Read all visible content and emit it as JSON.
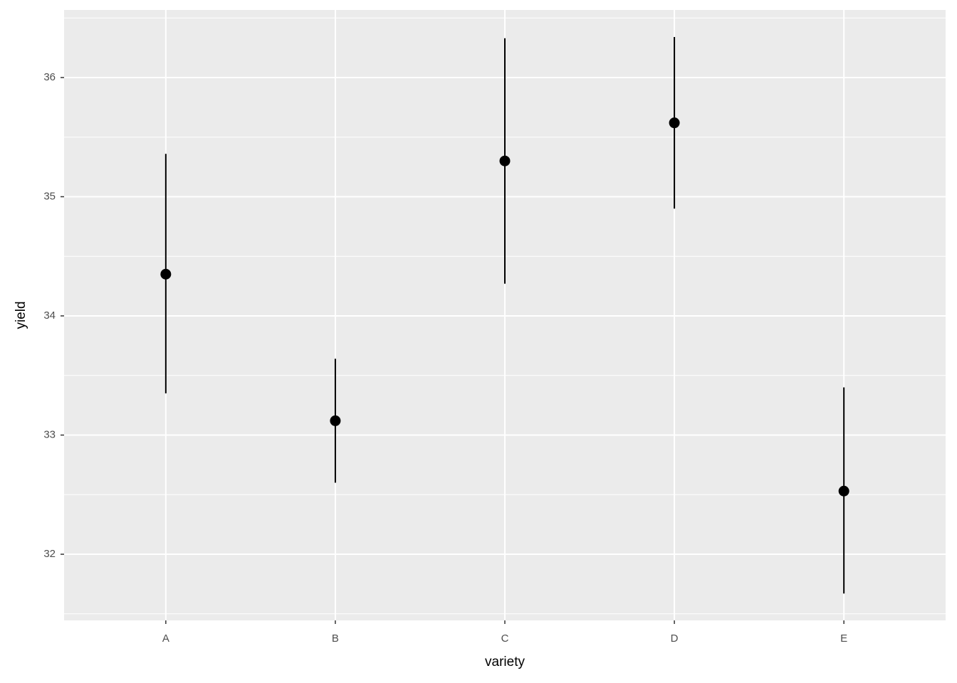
{
  "chart_data": {
    "type": "pointrange",
    "x_label": "variety",
    "y_label": "yield",
    "categories": [
      "A",
      "B",
      "C",
      "D",
      "E"
    ],
    "values": [
      34.35,
      33.12,
      35.3,
      35.62,
      32.53
    ],
    "lower": [
      33.35,
      32.6,
      34.27,
      34.9,
      31.67
    ],
    "upper": [
      35.36,
      33.64,
      36.33,
      36.34,
      33.4
    ],
    "color": "#000000",
    "ylim": [
      31.445,
      36.567
    ],
    "yticks": [
      32,
      33,
      34,
      35,
      36
    ],
    "grid": true
  }
}
